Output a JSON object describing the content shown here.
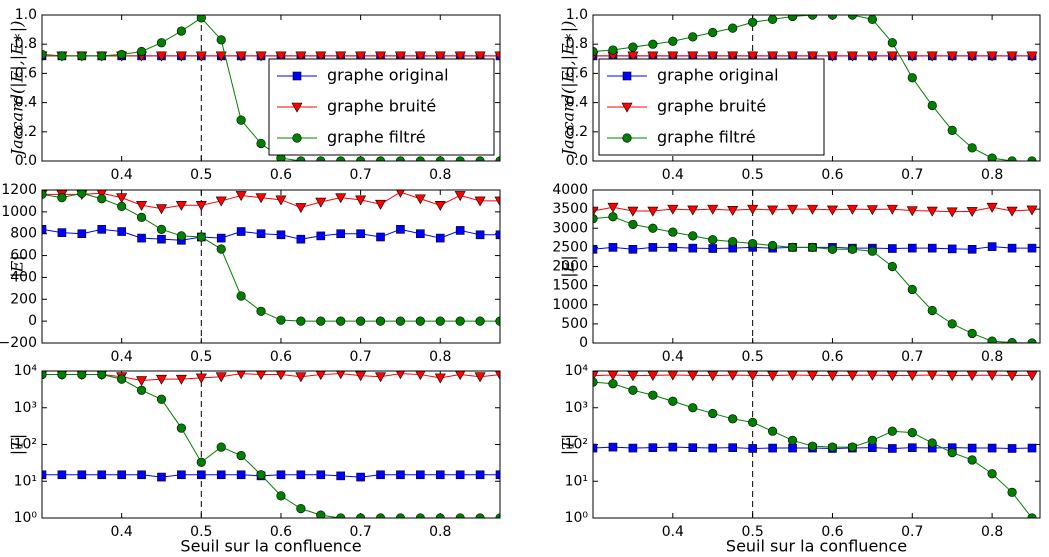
{
  "chart_data": [
    {
      "type": "line",
      "ylabel": "Jaccard(|E|,|E∗|)",
      "legend": "lower right",
      "xlim": [
        0.3,
        0.875
      ],
      "xticks": [
        0.4,
        0.5,
        0.6,
        0.7,
        0.8
      ],
      "ylim": [
        0,
        1
      ],
      "yticks": [
        {
          "value": 0,
          "label": "0.0"
        },
        0.2,
        0.4,
        0.6,
        0.8,
        {
          "value": 1,
          "label": "1.0"
        }
      ],
      "vline": 0.5,
      "x": [
        0.3,
        0.325,
        0.35,
        0.375,
        0.4,
        0.425,
        0.45,
        0.475,
        0.5,
        0.525,
        0.55,
        0.575,
        0.6,
        0.625,
        0.65,
        0.675,
        0.7,
        0.725,
        0.75,
        0.775,
        0.8,
        0.825,
        0.85,
        0.875
      ],
      "series": [
        {
          "name": "graphe original",
          "color": "#0000ff",
          "marker": "square",
          "values": [
            0.72,
            0.72,
            0.72,
            0.72,
            0.72,
            0.72,
            0.72,
            0.72,
            0.72,
            0.72,
            0.72,
            0.72,
            0.72,
            0.72,
            0.72,
            0.72,
            0.72,
            0.72,
            0.72,
            0.72,
            0.72,
            0.72,
            0.72,
            0.72
          ]
        },
        {
          "name": "graphe bruité",
          "color": "#ff0000",
          "marker": "triangle_down",
          "values": [
            0.72,
            0.72,
            0.72,
            0.72,
            0.72,
            0.72,
            0.72,
            0.72,
            0.72,
            0.72,
            0.72,
            0.72,
            0.72,
            0.72,
            0.72,
            0.72,
            0.72,
            0.72,
            0.72,
            0.72,
            0.72,
            0.72,
            0.72,
            0.72
          ]
        },
        {
          "name": "graphe filtré",
          "color": "#008000",
          "marker": "circle",
          "values": [
            0.73,
            0.72,
            0.72,
            0.72,
            0.73,
            0.75,
            0.81,
            0.89,
            0.98,
            0.83,
            0.28,
            0.12,
            0.02,
            0,
            0,
            0,
            0,
            0,
            0,
            0,
            0,
            0,
            0,
            0
          ]
        }
      ]
    },
    {
      "type": "line",
      "ylabel": "Jaccard(|E|,|E∗|)",
      "legend": "lower left",
      "xlim": [
        0.3,
        0.86
      ],
      "xticks": [
        0.4,
        0.5,
        0.6,
        0.7,
        0.8
      ],
      "ylim": [
        0,
        1
      ],
      "yticks": [
        {
          "value": 0,
          "label": "0.0"
        },
        0.2,
        0.4,
        0.6,
        0.8,
        {
          "value": 1,
          "label": "1.0"
        }
      ],
      "vline": 0.5,
      "x": [
        0.3,
        0.325,
        0.35,
        0.375,
        0.4,
        0.425,
        0.45,
        0.475,
        0.5,
        0.525,
        0.55,
        0.575,
        0.6,
        0.625,
        0.65,
        0.675,
        0.7,
        0.725,
        0.75,
        0.775,
        0.8,
        0.825,
        0.85
      ],
      "series": [
        {
          "name": "graphe original",
          "color": "#0000ff",
          "marker": "square",
          "values": [
            0.72,
            0.72,
            0.72,
            0.72,
            0.72,
            0.72,
            0.72,
            0.72,
            0.72,
            0.72,
            0.72,
            0.72,
            0.72,
            0.72,
            0.72,
            0.72,
            0.72,
            0.72,
            0.72,
            0.72,
            0.72,
            0.72,
            0.72
          ]
        },
        {
          "name": "graphe bruité",
          "color": "#ff0000",
          "marker": "triangle_down",
          "values": [
            0.72,
            0.72,
            0.72,
            0.72,
            0.72,
            0.72,
            0.72,
            0.72,
            0.72,
            0.72,
            0.72,
            0.72,
            0.72,
            0.72,
            0.72,
            0.72,
            0.72,
            0.72,
            0.72,
            0.72,
            0.72,
            0.72,
            0.72
          ]
        },
        {
          "name": "graphe filtré",
          "color": "#008000",
          "marker": "circle",
          "values": [
            0.75,
            0.76,
            0.78,
            0.8,
            0.82,
            0.85,
            0.88,
            0.91,
            0.95,
            0.97,
            0.99,
            1,
            1,
            1,
            0.97,
            0.81,
            0.57,
            0.38,
            0.21,
            0.09,
            0.02,
            0,
            0
          ]
        }
      ]
    },
    {
      "type": "line",
      "ylabel": "|E|",
      "xlim": [
        0.3,
        0.875
      ],
      "xticks": [
        0.4,
        0.5,
        0.6,
        0.7,
        0.8
      ],
      "ylim": [
        -200,
        1200
      ],
      "yticks": [
        {
          "value": -200,
          "label": "−200"
        },
        0,
        200,
        400,
        600,
        800,
        1000,
        1200
      ],
      "vline": 0.5,
      "x": [
        0.3,
        0.325,
        0.35,
        0.375,
        0.4,
        0.425,
        0.45,
        0.475,
        0.5,
        0.525,
        0.55,
        0.575,
        0.6,
        0.625,
        0.65,
        0.675,
        0.7,
        0.725,
        0.75,
        0.775,
        0.8,
        0.825,
        0.85,
        0.875
      ],
      "series": [
        {
          "color": "#0000ff",
          "marker": "square",
          "values": [
            840,
            810,
            800,
            840,
            820,
            760,
            750,
            740,
            770,
            760,
            820,
            800,
            790,
            750,
            780,
            800,
            800,
            770,
            840,
            800,
            760,
            830,
            790,
            790
          ]
        },
        {
          "color": "#ff0000",
          "marker": "triangle_down",
          "values": [
            1160,
            1160,
            1160,
            1170,
            1130,
            1060,
            1030,
            1060,
            1060,
            1100,
            1150,
            1130,
            1110,
            1040,
            1090,
            1130,
            1110,
            1070,
            1180,
            1120,
            1060,
            1150,
            1100,
            1100
          ]
        },
        {
          "color": "#008000",
          "marker": "circle",
          "values": [
            1160,
            1130,
            1170,
            1120,
            1050,
            950,
            840,
            780,
            770,
            660,
            230,
            90,
            10,
            0,
            0,
            0,
            0,
            0,
            0,
            0,
            0,
            0,
            0,
            0
          ]
        }
      ]
    },
    {
      "type": "line",
      "ylabel": "|E|",
      "xlim": [
        0.3,
        0.86
      ],
      "xticks": [
        0.4,
        0.5,
        0.6,
        0.7,
        0.8
      ],
      "ylim": [
        0,
        4000
      ],
      "yticks": [
        0,
        500,
        1000,
        1500,
        2000,
        2500,
        3000,
        3500,
        4000
      ],
      "vline": 0.5,
      "x": [
        0.3,
        0.325,
        0.35,
        0.375,
        0.4,
        0.425,
        0.45,
        0.475,
        0.5,
        0.525,
        0.55,
        0.575,
        0.6,
        0.625,
        0.65,
        0.675,
        0.7,
        0.725,
        0.75,
        0.775,
        0.8,
        0.825,
        0.85
      ],
      "series": [
        {
          "color": "#0000ff",
          "marker": "square",
          "values": [
            2450,
            2500,
            2450,
            2500,
            2500,
            2480,
            2470,
            2480,
            2500,
            2480,
            2500,
            2500,
            2500,
            2480,
            2480,
            2470,
            2480,
            2480,
            2460,
            2450,
            2520,
            2480,
            2480
          ]
        },
        {
          "color": "#ff0000",
          "marker": "triangle_down",
          "values": [
            3450,
            3550,
            3450,
            3450,
            3500,
            3480,
            3500,
            3470,
            3500,
            3480,
            3500,
            3500,
            3480,
            3500,
            3490,
            3500,
            3460,
            3450,
            3430,
            3440,
            3550,
            3450,
            3480
          ]
        },
        {
          "color": "#008000",
          "marker": "circle",
          "values": [
            3250,
            3300,
            3100,
            3000,
            2900,
            2800,
            2700,
            2650,
            2600,
            2550,
            2500,
            2500,
            2450,
            2450,
            2400,
            2000,
            1400,
            850,
            500,
            250,
            50,
            10,
            0
          ]
        }
      ]
    },
    {
      "type": "line",
      "ylabel": "|T|",
      "xlabel": "Seuil sur la confluence",
      "yscale": "log",
      "xlim": [
        0.3,
        0.875
      ],
      "xticks": [
        0.4,
        0.5,
        0.6,
        0.7,
        0.8
      ],
      "ylim": [
        1,
        10000
      ],
      "yticks": [
        {
          "value": 1,
          "label": "10⁰"
        },
        {
          "value": 10,
          "label": "10¹"
        },
        {
          "value": 100,
          "label": "10²"
        },
        {
          "value": 1000,
          "label": "10³"
        },
        {
          "value": 10000,
          "label": "10⁴"
        }
      ],
      "vline": 0.5,
      "x": [
        0.3,
        0.325,
        0.35,
        0.375,
        0.4,
        0.425,
        0.45,
        0.475,
        0.5,
        0.525,
        0.55,
        0.575,
        0.6,
        0.625,
        0.65,
        0.675,
        0.7,
        0.725,
        0.75,
        0.775,
        0.8,
        0.825,
        0.85,
        0.875
      ],
      "series": [
        {
          "color": "#0000ff",
          "marker": "square",
          "values": [
            15,
            15,
            15,
            15,
            15,
            15,
            13,
            15,
            15,
            15,
            15,
            14,
            15,
            15,
            15,
            14,
            13,
            15,
            15,
            15,
            15,
            15,
            15,
            15
          ]
        },
        {
          "color": "#ff0000",
          "marker": "triangle_down",
          "values": [
            8000,
            8000,
            8000,
            8000,
            7000,
            5500,
            6000,
            6000,
            6500,
            7000,
            8500,
            8000,
            8000,
            7000,
            8000,
            8500,
            7500,
            7000,
            8500,
            8000,
            6500,
            8000,
            7000,
            8000
          ]
        },
        {
          "color": "#008000",
          "marker": "circle",
          "values": [
            8000,
            8000,
            8000,
            8000,
            6000,
            3000,
            1700,
            280,
            33,
            85,
            50,
            15,
            4,
            1.8,
            1.2,
            1,
            1,
            1,
            1,
            1,
            1,
            1,
            1,
            1
          ]
        }
      ]
    },
    {
      "type": "line",
      "ylabel": "|T|",
      "xlabel": "Seuil sur la confluence",
      "yscale": "log",
      "xlim": [
        0.3,
        0.86
      ],
      "xticks": [
        0.4,
        0.5,
        0.6,
        0.7,
        0.8
      ],
      "ylim": [
        1,
        10000
      ],
      "yticks": [
        {
          "value": 1,
          "label": "10⁰"
        },
        {
          "value": 10,
          "label": "10¹"
        },
        {
          "value": 100,
          "label": "10²"
        },
        {
          "value": 1000,
          "label": "10³"
        },
        {
          "value": 10000,
          "label": "10⁴"
        }
      ],
      "vline": 0.5,
      "x": [
        0.3,
        0.325,
        0.35,
        0.375,
        0.4,
        0.425,
        0.45,
        0.475,
        0.5,
        0.525,
        0.55,
        0.575,
        0.6,
        0.625,
        0.65,
        0.675,
        0.7,
        0.725,
        0.75,
        0.775,
        0.8,
        0.825,
        0.85
      ],
      "series": [
        {
          "color": "#0000ff",
          "marker": "square",
          "values": [
            80,
            85,
            80,
            82,
            85,
            82,
            80,
            82,
            78,
            80,
            80,
            80,
            78,
            80,
            82,
            78,
            82,
            80,
            82,
            80,
            80,
            78,
            80
          ]
        },
        {
          "color": "#ff0000",
          "marker": "triangle_down",
          "values": [
            7500,
            7800,
            7500,
            7600,
            7800,
            7600,
            7500,
            7700,
            7600,
            7500,
            7800,
            7600,
            7500,
            7600,
            7700,
            7500,
            7600,
            7800,
            7500,
            7600,
            7700,
            7500,
            7600
          ]
        },
        {
          "color": "#008000",
          "marker": "circle",
          "values": [
            5000,
            4500,
            3000,
            2200,
            1500,
            1000,
            700,
            500,
            400,
            230,
            130,
            90,
            85,
            85,
            130,
            230,
            210,
            110,
            60,
            38,
            16,
            5,
            1
          ]
        }
      ]
    }
  ]
}
